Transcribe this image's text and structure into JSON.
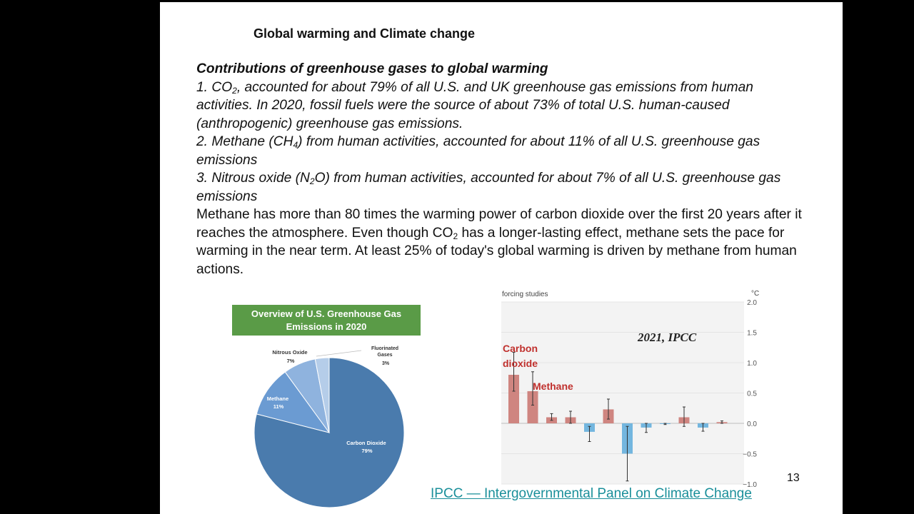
{
  "slide": {
    "title": "Global warming and Climate change",
    "subtitle": "Contributions of greenhouse gases to global warming",
    "item1_prefix": "1. CO",
    "item1_sub": "2",
    "item1_rest": ", accounted for about 79% of all U.S. and UK greenhouse gas emissions from human activities. In 2020, fossil fuels were the source of about 73% of total U.S. human-caused (anthropogenic) greenhouse gas emissions.",
    "item2_prefix": "2. Methane (CH",
    "item2_sub": "4",
    "item2_rest": ") from human activities, accounted for about 11% of all U.S. greenhouse gas emissions",
    "item3_prefix": "3. Nitrous oxide (N",
    "item3_sub": "2",
    "item3_rest": "O) from human activities, accounted for about 7% of all U.S. greenhouse gas emissions",
    "para_a": "Methane has more than 80 times the warming power of carbon dioxide over the first 20 years after it reaches the atmosphere. Even though CO",
    "para_sub": "2",
    "para_b": " has a longer-lasting effect, methane sets the pace for warming in the near term. At least 25% of today's global warming is driven by methane from human actions.",
    "link_text": "IPCC — Intergovernmental Panel on Climate Change",
    "page_number": "13"
  },
  "chart_data": [
    {
      "type": "pie",
      "title_line1": "Overview of U.S. Greenhouse Gas",
      "title_line2": "Emissions in 2020",
      "slices": [
        {
          "label": "Carbon Dioxide",
          "value_label": "79%",
          "value": 79,
          "color": "#4a7bad"
        },
        {
          "label": "Methane",
          "value_label": "11%",
          "value": 11,
          "color": "#6b9bd2"
        },
        {
          "label": "Nitrous Oxide",
          "value_label": "7%",
          "value": 7,
          "color": "#8fb3de"
        },
        {
          "label": "Fluorinated Gases",
          "value_label": "3%",
          "value": 3,
          "color": "#b5cde9"
        }
      ]
    },
    {
      "type": "bar",
      "top_left_label": "forcing studies",
      "unit": "°C",
      "annotation": "2021, IPCC",
      "ylim": [
        -1.0,
        2.0
      ],
      "yticks": [
        "2.0",
        "1.5",
        "1.0",
        "0.5",
        "0.0",
        "−0.5",
        "−1.0"
      ],
      "label_carbon": [
        "Carbon",
        "dioxide"
      ],
      "label_methane": "Methane",
      "bars": [
        {
          "value": 0.8,
          "err_lo": 0.53,
          "err_hi": 1.17
        },
        {
          "value": 0.53,
          "err_lo": 0.3,
          "err_hi": 0.85
        },
        {
          "value": 0.1,
          "err_lo": 0.05,
          "err_hi": 0.16
        },
        {
          "value": 0.1,
          "err_lo": 0.0,
          "err_hi": 0.2
        },
        {
          "value": -0.14,
          "err_lo": -0.3,
          "err_hi": -0.05
        },
        {
          "value": 0.23,
          "err_lo": 0.07,
          "err_hi": 0.4
        },
        {
          "value": -0.5,
          "err_lo": -0.95,
          "err_hi": -0.05
        },
        {
          "value": -0.07,
          "err_lo": -0.15,
          "err_hi": 0.0
        },
        {
          "value": -0.01,
          "err_lo": -0.02,
          "err_hi": 0.0
        },
        {
          "value": 0.1,
          "err_lo": -0.05,
          "err_hi": 0.27
        },
        {
          "value": -0.07,
          "err_lo": -0.13,
          "err_hi": 0.0
        },
        {
          "value": 0.02,
          "err_lo": 0.0,
          "err_hi": 0.04
        }
      ],
      "pos_color": "#cf8580",
      "neg_color": "#73b6df"
    }
  ]
}
